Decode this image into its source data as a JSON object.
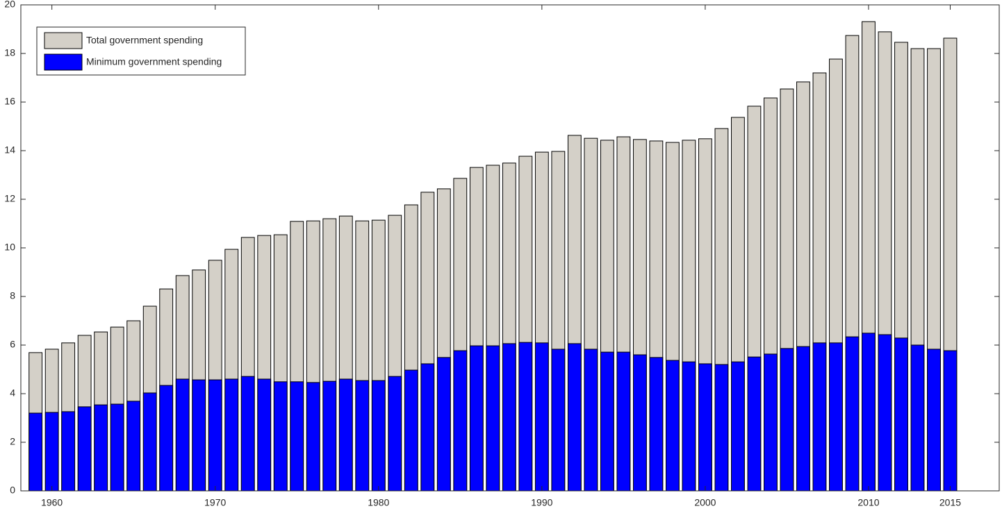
{
  "chart_data": {
    "type": "bar",
    "x": [
      1959,
      1960,
      1961,
      1962,
      1963,
      1964,
      1965,
      1966,
      1967,
      1968,
      1969,
      1970,
      1971,
      1972,
      1973,
      1974,
      1975,
      1976,
      1977,
      1978,
      1979,
      1980,
      1981,
      1982,
      1983,
      1984,
      1985,
      1986,
      1987,
      1988,
      1989,
      1990,
      1991,
      1992,
      1993,
      1994,
      1995,
      1996,
      1997,
      1998,
      1999,
      2000,
      2001,
      2002,
      2003,
      2004,
      2005,
      2006,
      2007,
      2008,
      2009,
      2010,
      2011,
      2012,
      2013,
      2014,
      2015
    ],
    "series": [
      {
        "name": "Total government spending",
        "color": "#d4d0c8",
        "values": [
          5.69,
          5.83,
          6.09,
          6.4,
          6.54,
          6.74,
          7.0,
          7.6,
          8.31,
          8.86,
          9.09,
          9.49,
          9.94,
          10.43,
          10.51,
          10.54,
          11.09,
          11.11,
          11.2,
          11.31,
          11.11,
          11.14,
          11.34,
          11.77,
          12.29,
          12.43,
          12.86,
          13.31,
          13.4,
          13.49,
          13.77,
          13.94,
          13.97,
          14.63,
          14.51,
          14.43,
          14.57,
          14.46,
          14.4,
          14.34,
          14.43,
          14.49,
          14.91,
          15.37,
          15.83,
          16.17,
          16.54,
          16.83,
          17.2,
          17.77,
          18.74,
          19.31,
          18.89,
          18.46,
          18.2,
          18.2,
          18.63
        ]
      },
      {
        "name": "Minimum government spending",
        "color": "#0000ff",
        "values": [
          3.2,
          3.23,
          3.26,
          3.46,
          3.54,
          3.57,
          3.69,
          4.03,
          4.34,
          4.6,
          4.57,
          4.57,
          4.6,
          4.71,
          4.6,
          4.49,
          4.49,
          4.46,
          4.51,
          4.6,
          4.54,
          4.54,
          4.71,
          4.97,
          5.23,
          5.49,
          5.77,
          5.97,
          5.97,
          6.06,
          6.11,
          6.09,
          5.83,
          6.06,
          5.83,
          5.71,
          5.71,
          5.6,
          5.49,
          5.37,
          5.31,
          5.23,
          5.2,
          5.31,
          5.51,
          5.63,
          5.86,
          5.94,
          6.09,
          6.09,
          6.34,
          6.49,
          6.43,
          6.29,
          6.0,
          5.83,
          5.77
        ]
      }
    ],
    "xlim": [
      1958.1,
      2018
    ],
    "xticks": [
      1960,
      1970,
      1980,
      1990,
      2000,
      2010,
      2015
    ],
    "ylim": [
      0,
      20
    ],
    "yticks": [
      0,
      2,
      4,
      6,
      8,
      10,
      12,
      14,
      16,
      18,
      20
    ]
  }
}
